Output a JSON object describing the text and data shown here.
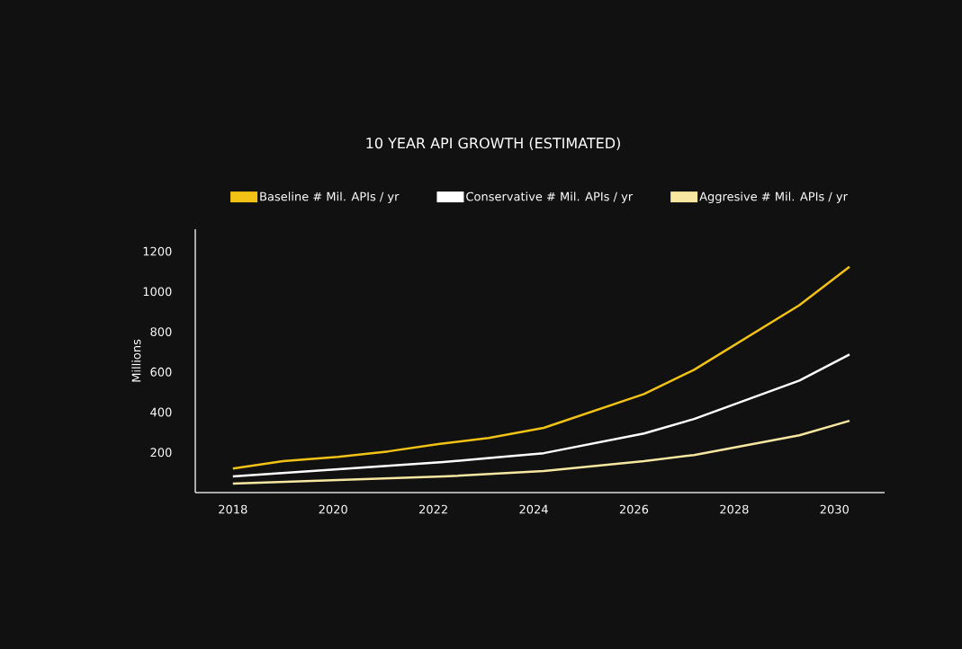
{
  "chart_data": {
    "type": "line",
    "title": "10 YEAR API GROWTH (ESTIMATED)",
    "ylabel": "Millions",
    "xlim": [
      2017.25,
      2031
    ],
    "xticks": [
      2018,
      2020,
      2022,
      2024,
      2026,
      2028,
      2030
    ],
    "ylim": [
      0,
      1310
    ],
    "yticks": [
      200,
      400,
      600,
      800,
      1000,
      1200
    ],
    "grid": false,
    "legend": "top",
    "marker": "none",
    "line_style": "solid",
    "series": [
      {
        "name": "Baseline # Mil. APIs / yr",
        "color": "#f2c314",
        "x": [
          2018,
          2019,
          2020.1,
          2021.1,
          2022.1,
          2023.1,
          2024.2,
          2026.2,
          2027.2,
          2029.3,
          2030.3
        ],
        "values": [
          120,
          156,
          178,
          205,
          241,
          272,
          322,
          490,
          611,
          932,
          1123
        ]
      },
      {
        "name": "Conservative # Mil. APIs / yr",
        "color": "#ffffff",
        "x": [
          2018,
          2020.1,
          2022.2,
          2024.2,
          2026.2,
          2027.2,
          2029.3,
          2030.3
        ],
        "values": [
          80,
          116,
          152,
          196,
          294,
          366,
          557,
          687
        ]
      },
      {
        "name": "Aggresive # Mil. APIs / yr",
        "color": "#f7e7a1",
        "x": [
          2018,
          2020.1,
          2022.2,
          2024.2,
          2026.2,
          2027.2,
          2029.3,
          2030.3
        ],
        "values": [
          45,
          62,
          80,
          107,
          156,
          187,
          285,
          357
        ]
      }
    ]
  }
}
